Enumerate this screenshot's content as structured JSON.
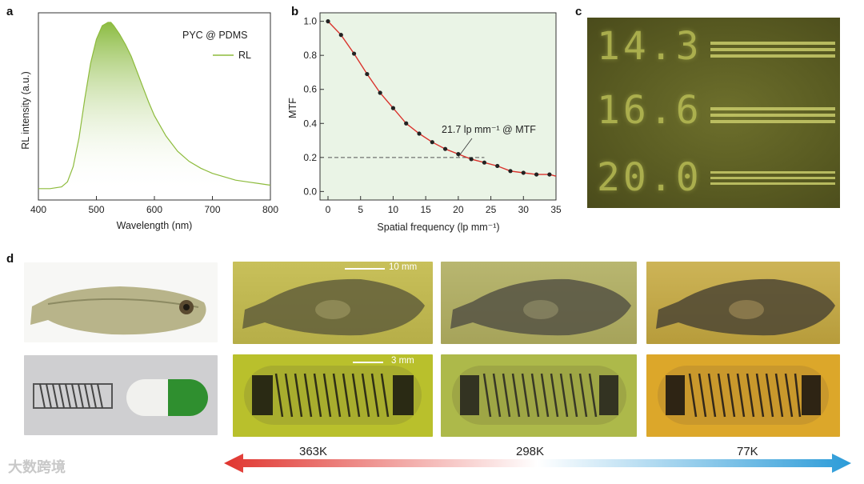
{
  "panels": {
    "a": "a",
    "b": "b",
    "c": "c",
    "d": "d"
  },
  "chart_data": [
    {
      "type": "line",
      "panel": "a",
      "title": "",
      "xlabel": "Wavelength (nm)",
      "ylabel": "RL intensity (a.u.)",
      "xlim": [
        400,
        800
      ],
      "xticks": [
        "400",
        "500",
        "600",
        "700",
        "800"
      ],
      "legend": {
        "title": "PYC @ PDMS",
        "entries": [
          "RL"
        ],
        "position": "top-right"
      },
      "series": [
        {
          "name": "RL",
          "x": [
            400,
            420,
            440,
            450,
            460,
            470,
            480,
            490,
            500,
            510,
            520,
            525,
            530,
            540,
            550,
            560,
            570,
            580,
            590,
            600,
            620,
            640,
            660,
            680,
            700,
            720,
            740,
            760,
            780,
            800
          ],
          "values": [
            0.02,
            0.02,
            0.03,
            0.06,
            0.15,
            0.32,
            0.55,
            0.76,
            0.9,
            0.98,
            1.0,
            1.0,
            0.98,
            0.93,
            0.87,
            0.8,
            0.71,
            0.62,
            0.53,
            0.45,
            0.33,
            0.24,
            0.18,
            0.14,
            0.11,
            0.09,
            0.07,
            0.06,
            0.05,
            0.04
          ]
        }
      ]
    },
    {
      "type": "line",
      "panel": "b",
      "title": "",
      "xlabel": "Spatial frequency (lp mm⁻¹)",
      "ylabel": "MTF",
      "xlim": [
        0,
        35
      ],
      "ylim": [
        -0.05,
        1.05
      ],
      "xticks": [
        "0",
        "5",
        "10",
        "15",
        "20",
        "25",
        "30",
        "35"
      ],
      "yticks": [
        "0.0",
        "0.2",
        "0.4",
        "0.6",
        "0.8",
        "1.0"
      ],
      "annotation": "21.7 lp mm⁻¹ @ MTF",
      "reference_line": {
        "y": 0.2,
        "x_end": 24
      },
      "series": [
        {
          "name": "MTF",
          "x": [
            0,
            2,
            4,
            6,
            8,
            10,
            12,
            14,
            16,
            18,
            20,
            22,
            24,
            26,
            28,
            30,
            32,
            34
          ],
          "values": [
            1.0,
            0.92,
            0.81,
            0.69,
            0.58,
            0.49,
            0.4,
            0.34,
            0.29,
            0.25,
            0.22,
            0.19,
            0.17,
            0.15,
            0.12,
            0.11,
            0.1,
            0.1
          ]
        }
      ]
    }
  ],
  "panel_c": {
    "labels": [
      "14.3",
      "16.6",
      "20.0"
    ]
  },
  "panel_d": {
    "scale_bar_fish": "10 mm",
    "scale_bar_spring": "3 mm",
    "temperatures": [
      "363K",
      "298K",
      "77K"
    ]
  },
  "watermark": "大数跨境",
  "colors": {
    "spectrum": "#8dbb3c",
    "mtf_line": "#d9322c",
    "arrow_hot": "#e0352f",
    "arrow_cold": "#2b9bd8"
  }
}
